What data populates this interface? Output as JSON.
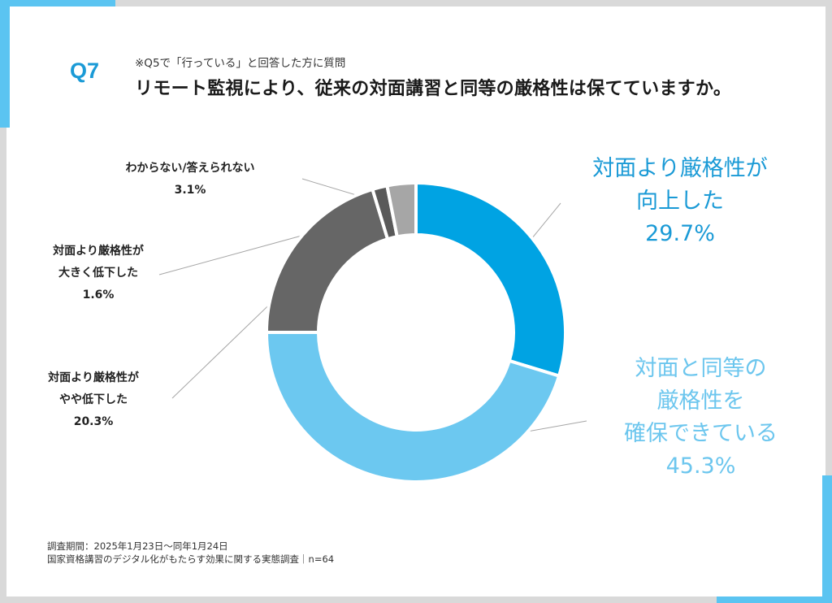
{
  "header": {
    "question_number": "Q7",
    "condition_note": "※Q5で「行っている」と回答した方に質問",
    "question_text": "リモート監視により、従来の対面講習と同等の厳格性は保てていますか。"
  },
  "chart_data": {
    "type": "pie",
    "donut": true,
    "start_angle_deg": 0,
    "direction": "clockwise",
    "slices": [
      {
        "label": "対面より厳格性が向上した",
        "label_lines": [
          "対面より厳格性が",
          "向上した"
        ],
        "value": 29.7,
        "value_text": "29.7%",
        "color": "#00a3e3"
      },
      {
        "label": "対面と同等の厳格性を確保できている",
        "label_lines": [
          "対面と同等の",
          "厳格性を",
          "確保できている"
        ],
        "value": 45.3,
        "value_text": "45.3%",
        "color": "#6cc8f0"
      },
      {
        "label": "対面より厳格性がやや低下した",
        "label_lines": [
          "対面より厳格性が",
          "やや低下した"
        ],
        "value": 20.3,
        "value_text": "20.3%",
        "color": "#666666"
      },
      {
        "label": "対面より厳格性が大きく低下した",
        "label_lines": [
          "対面より厳格性が",
          "大きく低下した"
        ],
        "value": 1.6,
        "value_text": "1.6%",
        "color": "#595959"
      },
      {
        "label": "わからない/答えられない",
        "label_lines": [
          "わからない/答えられない"
        ],
        "value": 3.1,
        "value_text": "3.1%",
        "color": "#a6a6a6"
      }
    ]
  },
  "footer": {
    "survey_period": "調査期間：2025年1月23日～同年1月24日",
    "survey_name": "国家資格講習のデジタル化がもたらす効果に関する実態調査｜n=64"
  }
}
